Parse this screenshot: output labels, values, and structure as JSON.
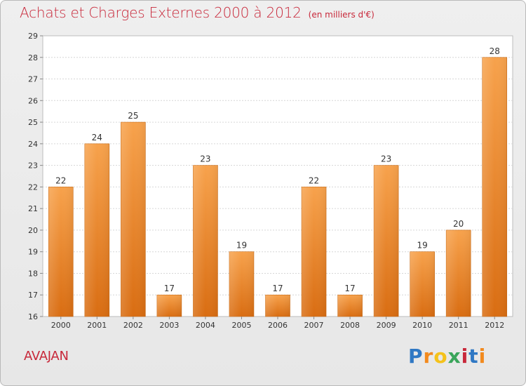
{
  "chart_data": {
    "type": "bar",
    "title": "Achats et Charges Externes 2000 à 2012",
    "subtitle": "(en milliers d'€)",
    "categories": [
      "2000",
      "2001",
      "2002",
      "2003",
      "2004",
      "2005",
      "2006",
      "2007",
      "2008",
      "2009",
      "2010",
      "2011",
      "2012"
    ],
    "values": [
      22,
      24,
      25,
      17,
      23,
      19,
      17,
      22,
      17,
      23,
      19,
      20,
      28
    ],
    "ylim": [
      16,
      29
    ],
    "yticks": [
      16,
      17,
      18,
      19,
      20,
      21,
      22,
      23,
      24,
      25,
      26,
      27,
      28,
      29
    ],
    "grid": true,
    "bar_color": "#e98a2c",
    "title_color": "#c8283a"
  },
  "commune": "AVAJAN",
  "logo": {
    "letters": [
      "P",
      "r",
      "o",
      "x",
      "i",
      "t",
      "i"
    ],
    "colors": [
      "#2f78c4",
      "#f28a1e",
      "#f5c21b",
      "#3aa55a",
      "#c8283a",
      "#2f78c4",
      "#f28a1e"
    ]
  }
}
